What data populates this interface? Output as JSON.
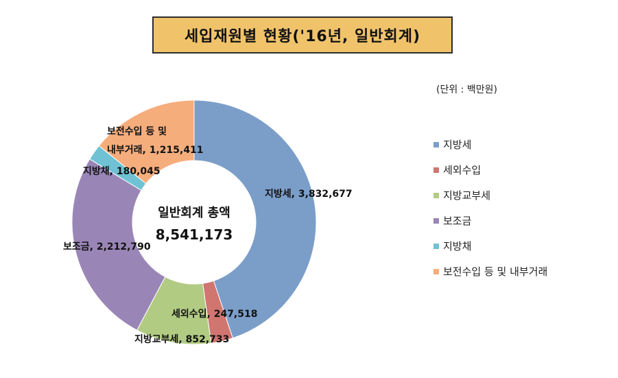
{
  "title": "세입재원별 현황('16년, 일반회계)",
  "unit_note": "(단위 : 백만원)",
  "center": {
    "label": "일반회계 총액",
    "value": "8,541,173"
  },
  "colors": {
    "title_bg": "#f0c36b"
  },
  "chart_data": {
    "type": "pie",
    "donut": true,
    "title": "세입재원별 현황('16년, 일반회계)",
    "total": 8541173,
    "slices": [
      {
        "name": "지방세",
        "value": 3832677,
        "value_label": "3,832,677",
        "color": "#7b9ec9",
        "data_label": "지방세, 3,832,677"
      },
      {
        "name": "세외수입",
        "value": 247518,
        "value_label": "247,518",
        "color": "#d07570",
        "data_label": "세외수입, 247,518"
      },
      {
        "name": "지방교부세",
        "value": 852733,
        "value_label": "852,733",
        "color": "#b1cb83",
        "data_label": "지방교부세, 852,733"
      },
      {
        "name": "보조금",
        "value": 2212790,
        "value_label": "2,212,790",
        "color": "#9a86b6",
        "data_label": "보조금, 2,212,790"
      },
      {
        "name": "지방채",
        "value": 180045,
        "value_label": "180,045",
        "color": "#6ec2d3",
        "data_label": "지방채, 180,045"
      },
      {
        "name": "보전수입 등 및 내부거래",
        "value": 1215411,
        "value_label": "1,215,411",
        "color": "#f6ad7c",
        "data_label_lines": [
          "보전수입 등 및",
          "내부거래, 1,215,411"
        ]
      }
    ],
    "legend_position": "right"
  }
}
